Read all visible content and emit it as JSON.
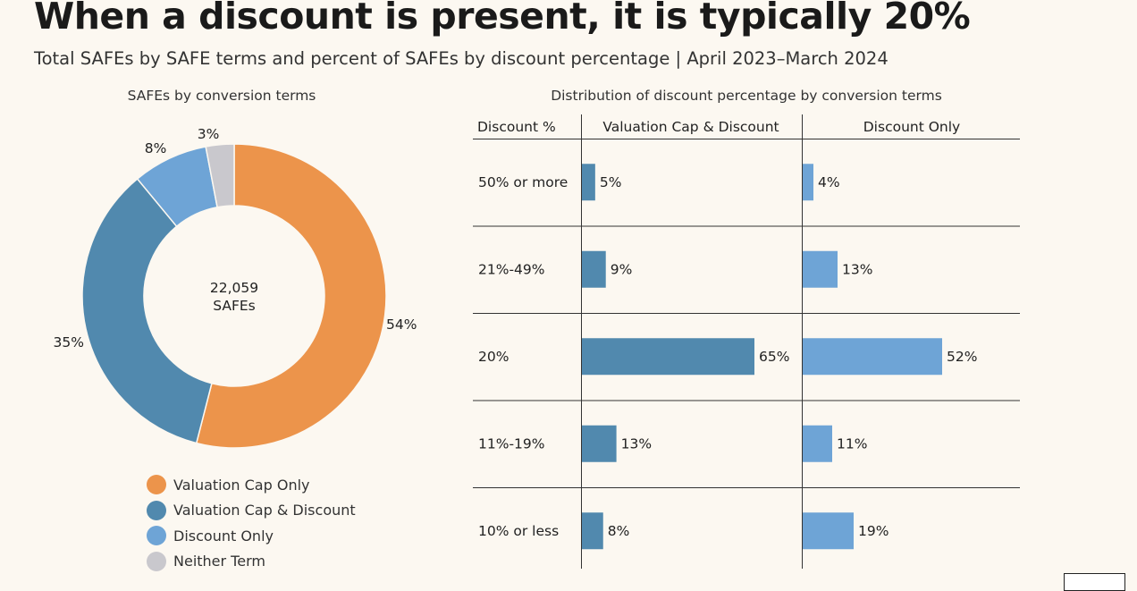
{
  "title": "When a discount is present, it is typically 20%",
  "subtitle": "Total SAFEs by SAFE terms and percent of SAFEs by discount percentage  |  April 2023–March 2024",
  "chart_data": [
    {
      "type": "pie",
      "title": "SAFEs by conversion terms",
      "center_value": "22,059",
      "center_label": "SAFEs",
      "categories": [
        "Valuation Cap Only",
        "Valuation Cap & Discount",
        "Discount Only",
        "Neither Term"
      ],
      "values": [
        54,
        35,
        8,
        3
      ],
      "value_labels": [
        "54%",
        "35%",
        "8%",
        "3%"
      ],
      "colors": [
        "#ec944b",
        "#5189ae",
        "#6ea4d6",
        "#c9c8cd"
      ],
      "legend": "bottom"
    },
    {
      "type": "bar",
      "orientation": "horizontal",
      "title": "Distribution of discount percentage by conversion terms",
      "row_header": "Discount %",
      "categories": [
        "50% or more",
        "21%-49%",
        "20%",
        "11%-19%",
        "10% or less"
      ],
      "series": [
        {
          "name": "Valuation Cap & Discount",
          "values": [
            5,
            9,
            65,
            13,
            8
          ],
          "value_labels": [
            "5%",
            "9%",
            "65%",
            "13%",
            "8%"
          ],
          "color": "#5189ae"
        },
        {
          "name": "Discount Only",
          "values": [
            4,
            13,
            52,
            11,
            19
          ],
          "value_labels": [
            "4%",
            "13%",
            "52%",
            "11%",
            "19%"
          ],
          "color": "#6ea4d6"
        }
      ],
      "xlim": [
        0,
        100
      ],
      "grid": false
    }
  ]
}
